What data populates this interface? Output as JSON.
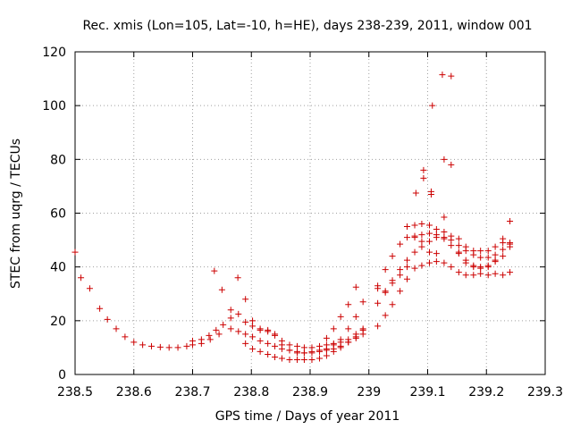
{
  "chart_data": {
    "type": "scatter",
    "title": "Rec. xmis (Lon=105, Lat=-10, h=HE), days 238-239, 2011, window 001",
    "xlabel": "GPS time / Days of year 2011",
    "ylabel": "STEC from uqrg / TECUs",
    "xlim": [
      238.5,
      239.3
    ],
    "ylim": [
      0,
      120
    ],
    "xticks": [
      238.5,
      238.6,
      238.7,
      238.8,
      238.9,
      239.0,
      239.1,
      239.2,
      239.3
    ],
    "xtick_labels": [
      "238.5",
      "238.6",
      "238.7",
      "238.8",
      "238.9",
      "239",
      "239.1",
      "239.2",
      "239.3"
    ],
    "yticks": [
      0,
      20,
      40,
      60,
      80,
      100,
      120
    ],
    "ytick_labels": [
      "0",
      "20",
      "40",
      "60",
      "80",
      "100",
      "120"
    ],
    "grid": true,
    "marker": "+",
    "color": "#cc0000",
    "points": [
      [
        238.5,
        45.5
      ],
      [
        238.51,
        36.0
      ],
      [
        238.525,
        32.0
      ],
      [
        238.542,
        24.5
      ],
      [
        238.555,
        20.5
      ],
      [
        238.57,
        17.0
      ],
      [
        238.585,
        14.0
      ],
      [
        238.6,
        12.0
      ],
      [
        238.615,
        11.0
      ],
      [
        238.63,
        10.5
      ],
      [
        238.645,
        10.2
      ],
      [
        238.66,
        10.0
      ],
      [
        238.675,
        10.0
      ],
      [
        238.69,
        10.5
      ],
      [
        238.7,
        11.0
      ],
      [
        238.715,
        11.5
      ],
      [
        238.73,
        13.0
      ],
      [
        238.745,
        15.0
      ],
      [
        238.7,
        12.5
      ],
      [
        238.715,
        13.0
      ],
      [
        238.728,
        14.5
      ],
      [
        238.74,
        16.5
      ],
      [
        238.752,
        18.5
      ],
      [
        238.765,
        21.0
      ],
      [
        238.778,
        22.5
      ],
      [
        238.79,
        19.5
      ],
      [
        238.802,
        18.0
      ],
      [
        238.815,
        17.0
      ],
      [
        238.828,
        16.5
      ],
      [
        238.84,
        15.0
      ],
      [
        238.852,
        12.5
      ],
      [
        238.865,
        11.0
      ],
      [
        238.878,
        10.5
      ],
      [
        238.89,
        10.0
      ],
      [
        238.903,
        10.0
      ],
      [
        238.916,
        10.5
      ],
      [
        238.928,
        11.0
      ],
      [
        238.94,
        11.5
      ],
      [
        238.952,
        12.0
      ],
      [
        238.965,
        13.0
      ],
      [
        238.978,
        15.0
      ],
      [
        238.99,
        17.0
      ],
      [
        238.737,
        38.5
      ],
      [
        238.75,
        31.5
      ],
      [
        238.765,
        24.0
      ],
      [
        238.777,
        36.0
      ],
      [
        238.79,
        28.0
      ],
      [
        238.802,
        20.0
      ],
      [
        238.815,
        16.5
      ],
      [
        238.828,
        16.0
      ],
      [
        238.84,
        14.5
      ],
      [
        238.852,
        11.0
      ],
      [
        238.865,
        9.0
      ],
      [
        238.878,
        8.0
      ],
      [
        238.89,
        8.0
      ],
      [
        238.903,
        8.5
      ],
      [
        238.916,
        9.0
      ],
      [
        238.928,
        9.5
      ],
      [
        238.94,
        11.0
      ],
      [
        238.952,
        13.0
      ],
      [
        238.965,
        17.0
      ],
      [
        238.978,
        21.5
      ],
      [
        238.99,
        27.0
      ],
      [
        238.765,
        17.0
      ],
      [
        238.778,
        16.0
      ],
      [
        238.79,
        15.0
      ],
      [
        238.802,
        14.0
      ],
      [
        238.815,
        12.5
      ],
      [
        238.828,
        11.5
      ],
      [
        238.84,
        10.5
      ],
      [
        238.852,
        9.5
      ],
      [
        238.865,
        9.0
      ],
      [
        238.878,
        8.5
      ],
      [
        238.89,
        8.0
      ],
      [
        238.903,
        8.0
      ],
      [
        238.916,
        8.5
      ],
      [
        238.928,
        9.0
      ],
      [
        238.94,
        9.5
      ],
      [
        238.952,
        10.5
      ],
      [
        238.965,
        12.0
      ],
      [
        238.978,
        13.5
      ],
      [
        238.99,
        15.0
      ],
      [
        238.79,
        11.5
      ],
      [
        238.802,
        9.5
      ],
      [
        238.815,
        8.5
      ],
      [
        238.828,
        7.5
      ],
      [
        238.84,
        6.5
      ],
      [
        238.852,
        6.0
      ],
      [
        238.865,
        5.5
      ],
      [
        238.878,
        5.5
      ],
      [
        238.89,
        5.5
      ],
      [
        238.903,
        5.5
      ],
      [
        238.916,
        6.0
      ],
      [
        238.928,
        7.0
      ],
      [
        238.94,
        8.5
      ],
      [
        238.952,
        10.0
      ],
      [
        238.965,
        12.0
      ],
      [
        238.978,
        14.0
      ],
      [
        238.99,
        16.5
      ],
      [
        238.928,
        13.5
      ],
      [
        238.94,
        17.0
      ],
      [
        238.952,
        21.5
      ],
      [
        238.965,
        26.0
      ],
      [
        238.978,
        32.5
      ],
      [
        239.015,
        33.0
      ],
      [
        239.028,
        39.0
      ],
      [
        239.04,
        44.0
      ],
      [
        239.053,
        48.5
      ],
      [
        239.065,
        51.0
      ],
      [
        239.078,
        51.5
      ],
      [
        239.09,
        52.0
      ],
      [
        239.103,
        52.5
      ],
      [
        239.115,
        52.0
      ],
      [
        239.128,
        51.0
      ],
      [
        239.14,
        50.0
      ],
      [
        239.153,
        48.0
      ],
      [
        239.165,
        46.0
      ],
      [
        239.178,
        44.5
      ],
      [
        239.19,
        43.5
      ],
      [
        239.203,
        43.5
      ],
      [
        239.215,
        44.5
      ],
      [
        239.228,
        46.5
      ],
      [
        239.24,
        48.5
      ],
      [
        239.015,
        26.5
      ],
      [
        239.028,
        31.0
      ],
      [
        239.04,
        35.0
      ],
      [
        239.053,
        39.0
      ],
      [
        239.065,
        42.5
      ],
      [
        239.078,
        45.5
      ],
      [
        239.09,
        47.5
      ],
      [
        239.103,
        49.5
      ],
      [
        239.115,
        51.0
      ],
      [
        239.128,
        50.5
      ],
      [
        239.14,
        48.0
      ],
      [
        239.153,
        45.5
      ],
      [
        239.165,
        42.5
      ],
      [
        239.178,
        40.5
      ],
      [
        239.19,
        39.5
      ],
      [
        239.203,
        40.0
      ],
      [
        239.215,
        42.0
      ],
      [
        239.228,
        44.0
      ],
      [
        239.24,
        47.5
      ],
      [
        239.015,
        18.0
      ],
      [
        239.028,
        22.0
      ],
      [
        239.04,
        26.0
      ],
      [
        239.053,
        31.0
      ],
      [
        239.065,
        35.5
      ],
      [
        239.078,
        39.5
      ],
      [
        239.09,
        40.5
      ],
      [
        239.103,
        41.5
      ],
      [
        239.115,
        42.0
      ],
      [
        239.128,
        41.5
      ],
      [
        239.14,
        40.0
      ],
      [
        239.153,
        38.0
      ],
      [
        239.165,
        37.0
      ],
      [
        239.178,
        37.0
      ],
      [
        239.19,
        37.5
      ],
      [
        239.203,
        37.0
      ],
      [
        239.215,
        37.5
      ],
      [
        239.228,
        37.0
      ],
      [
        239.24,
        38.0
      ],
      [
        239.015,
        32.0
      ],
      [
        239.028,
        30.5
      ],
      [
        239.04,
        34.0
      ],
      [
        239.053,
        37.0
      ],
      [
        239.065,
        40.0
      ],
      [
        239.078,
        51.0
      ],
      [
        239.09,
        49.5
      ],
      [
        239.103,
        45.5
      ],
      [
        239.115,
        45.0
      ],
      [
        239.128,
        53.0
      ],
      [
        239.14,
        51.5
      ],
      [
        239.153,
        45.0
      ],
      [
        239.165,
        41.5
      ],
      [
        239.178,
        40.0
      ],
      [
        239.19,
        40.0
      ],
      [
        239.203,
        40.5
      ],
      [
        239.215,
        42.5
      ],
      [
        239.228,
        49.0
      ],
      [
        239.24,
        49.0
      ],
      [
        239.065,
        55.0
      ],
      [
        239.078,
        55.5
      ],
      [
        239.09,
        56.0
      ],
      [
        239.103,
        55.5
      ],
      [
        239.115,
        54.0
      ],
      [
        239.128,
        58.5
      ],
      [
        239.153,
        50.5
      ],
      [
        239.165,
        47.5
      ],
      [
        239.178,
        46.0
      ],
      [
        239.19,
        46.0
      ],
      [
        239.203,
        46.0
      ],
      [
        239.215,
        47.5
      ],
      [
        239.228,
        50.5
      ],
      [
        239.24,
        57.0
      ],
      [
        239.08,
        67.5
      ],
      [
        239.093,
        73.0
      ],
      [
        239.093,
        76.0
      ],
      [
        239.106,
        67.0
      ],
      [
        239.106,
        68.0
      ],
      [
        239.128,
        80.0
      ],
      [
        239.14,
        78.0
      ],
      [
        239.108,
        100.0
      ],
      [
        239.125,
        111.5
      ],
      [
        239.14,
        111.0
      ]
    ]
  }
}
